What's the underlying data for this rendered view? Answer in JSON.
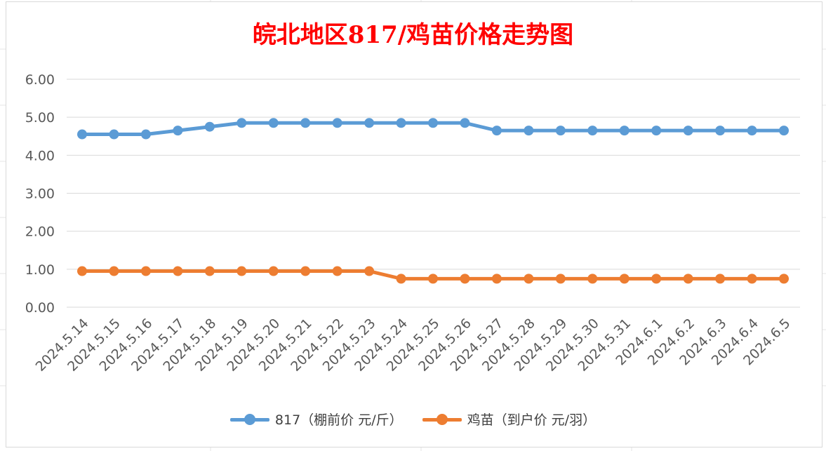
{
  "colors": {
    "title": "#ff0000",
    "series_817": "#5b9bd5",
    "series_chick": "#ed7d31",
    "grid": "#d9d9d9"
  },
  "chart_data": {
    "type": "line",
    "title": "皖北地区817/鸡苗价格走势图",
    "xlabel": "",
    "ylabel": "",
    "ylim": [
      0,
      6
    ],
    "y_ticks": [
      "0.00",
      "1.00",
      "2.00",
      "3.00",
      "4.00",
      "5.00",
      "6.00"
    ],
    "grid": "horizontal",
    "legend_position": "bottom",
    "categories": [
      "2024.5.14",
      "2024.5.15",
      "2024.5.16",
      "2024.5.17",
      "2024.5.18",
      "2024.5.19",
      "2024.5.20",
      "2024.5.21",
      "2024.5.22",
      "2024.5.23",
      "2024.5.24",
      "2024.5.25",
      "2024.5.26",
      "2024.5.27",
      "2024.5.28",
      "2024.5.29",
      "2024.5.30",
      "2024.5.31",
      "2024.6.1",
      "2024.6.2",
      "2024.6.3",
      "2024.6.4",
      "2024.6.5"
    ],
    "series": [
      {
        "name": "817（棚前价 元/斤）",
        "color": "#5b9bd5",
        "values": [
          4.55,
          4.55,
          4.55,
          4.65,
          4.75,
          4.85,
          4.85,
          4.85,
          4.85,
          4.85,
          4.85,
          4.85,
          4.85,
          4.65,
          4.65,
          4.65,
          4.65,
          4.65,
          4.65,
          4.65,
          4.65,
          4.65,
          4.65
        ]
      },
      {
        "name": "鸡苗（到户价 元/羽）",
        "color": "#ed7d31",
        "values": [
          0.95,
          0.95,
          0.95,
          0.95,
          0.95,
          0.95,
          0.95,
          0.95,
          0.95,
          0.95,
          0.75,
          0.75,
          0.75,
          0.75,
          0.75,
          0.75,
          0.75,
          0.75,
          0.75,
          0.75,
          0.75,
          0.75,
          0.75
        ]
      }
    ]
  }
}
